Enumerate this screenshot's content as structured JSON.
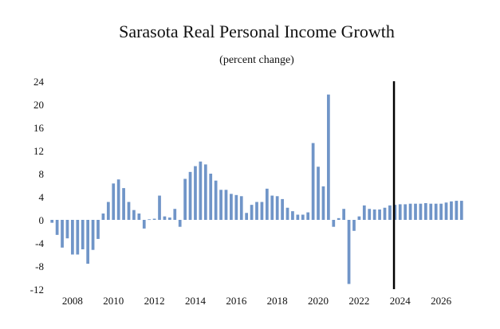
{
  "chart_data": {
    "type": "bar",
    "title": "Sarasota Real Personal Income Growth",
    "subtitle": "(percent change)",
    "xlabel": "",
    "ylabel": "",
    "ylim": [
      -12,
      24
    ],
    "y_ticks": [
      24,
      20,
      16,
      12,
      8,
      4,
      0,
      -4,
      -8,
      -12
    ],
    "x_tick_labels": [
      "2008",
      "2010",
      "2012",
      "2014",
      "2016",
      "2018",
      "2020",
      "2022",
      "2024",
      "2026"
    ],
    "x_tick_label_years": [
      2008,
      2010,
      2012,
      2014,
      2016,
      2018,
      2020,
      2022,
      2024,
      2026
    ],
    "start_quarter": "2007Q1",
    "forecast_start_quarter": "2023Q4",
    "grid": false,
    "colors": {
      "bar": "#7095c8",
      "divider": "#000000",
      "text": "#111111"
    },
    "series": [
      {
        "name": "Real personal income growth",
        "values": [
          -0.5,
          -2.6,
          -4.8,
          -3.2,
          -6.0,
          -6.0,
          -5.1,
          -7.6,
          -5.2,
          -3.3,
          1.1,
          3.1,
          6.3,
          7.0,
          5.5,
          3.1,
          1.7,
          1.1,
          -1.5,
          0.1,
          0.2,
          4.2,
          0.6,
          0.4,
          1.9,
          -1.2,
          7.1,
          8.3,
          9.3,
          10.1,
          9.6,
          8.0,
          6.8,
          5.2,
          5.2,
          4.5,
          4.3,
          4.1,
          1.2,
          2.6,
          3.1,
          3.1,
          5.4,
          4.2,
          4.1,
          3.6,
          2.1,
          1.5,
          0.9,
          0.9,
          1.3,
          13.3,
          9.2,
          5.8,
          21.7,
          -1.2,
          0.3,
          1.9,
          -11.1,
          -1.9,
          0.6,
          2.5,
          1.9,
          1.8,
          1.8,
          2.1,
          2.5,
          2.6,
          2.7,
          2.7,
          2.8,
          2.8,
          2.8,
          2.9,
          2.8,
          2.8,
          2.8,
          3.0,
          3.2,
          3.3,
          3.3
        ]
      }
    ]
  }
}
